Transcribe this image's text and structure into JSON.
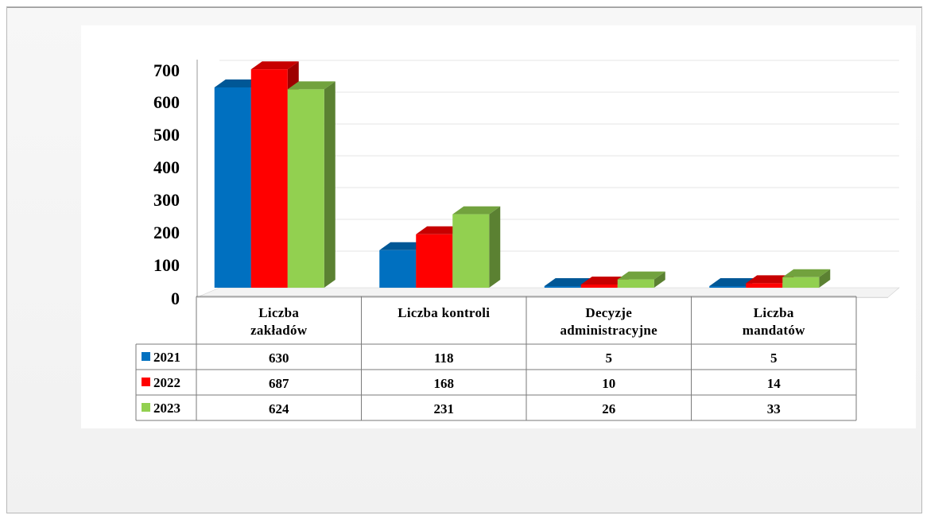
{
  "chart_data": {
    "type": "bar",
    "categories": [
      [
        "Liczba",
        "zakładów"
      ],
      [
        "Liczba kontroli"
      ],
      [
        "Decyzje",
        "administracyjne"
      ],
      [
        "Liczba",
        "mandatów"
      ]
    ],
    "series": [
      {
        "name": "2021",
        "color": "#0070c0",
        "values": [
          630,
          118,
          5,
          5
        ]
      },
      {
        "name": "2022",
        "color": "#ff0000",
        "values": [
          687,
          168,
          10,
          14
        ]
      },
      {
        "name": "2023",
        "color": "#92d050",
        "values": [
          624,
          231,
          26,
          33
        ]
      }
    ],
    "ylim": [
      0,
      700
    ],
    "yticks": [
      0,
      100,
      200,
      300,
      400,
      500,
      600,
      700
    ],
    "grid": true,
    "legend": "data-table"
  }
}
